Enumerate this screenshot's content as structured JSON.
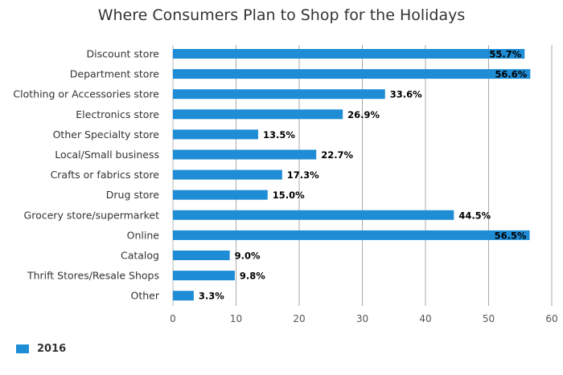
{
  "chart_data": {
    "type": "bar",
    "orientation": "horizontal",
    "title": "Where Consumers Plan to Shop for the Holidays",
    "categories": [
      "Discount store",
      "Department store",
      "Clothing or Accessories store",
      "Electronics store",
      "Other Specialty store",
      "Local/Small business",
      "Crafts or fabrics store",
      "Drug store",
      "Grocery store/supermarket",
      "Online",
      "Catalog",
      "Thrift Stores/Resale Shops",
      "Other"
    ],
    "series": [
      {
        "name": "2016",
        "values": [
          55.7,
          56.6,
          33.6,
          26.9,
          13.5,
          22.7,
          17.3,
          15.0,
          44.5,
          56.5,
          9.0,
          9.8,
          3.3
        ],
        "labels": [
          "55.7%",
          "56.6%",
          "33.6%",
          "26.9%",
          "13.5%",
          "22.7%",
          "17.3%",
          "15.0%",
          "44.5%",
          "56.5%",
          "9.0%",
          "9.8%",
          "3.3%"
        ]
      }
    ],
    "xlim": [
      0,
      60
    ],
    "xticks": [
      0,
      10,
      20,
      30,
      40,
      50,
      60
    ],
    "grid": true,
    "legend_position": "bottom-left",
    "color": "#1f8dd6"
  }
}
